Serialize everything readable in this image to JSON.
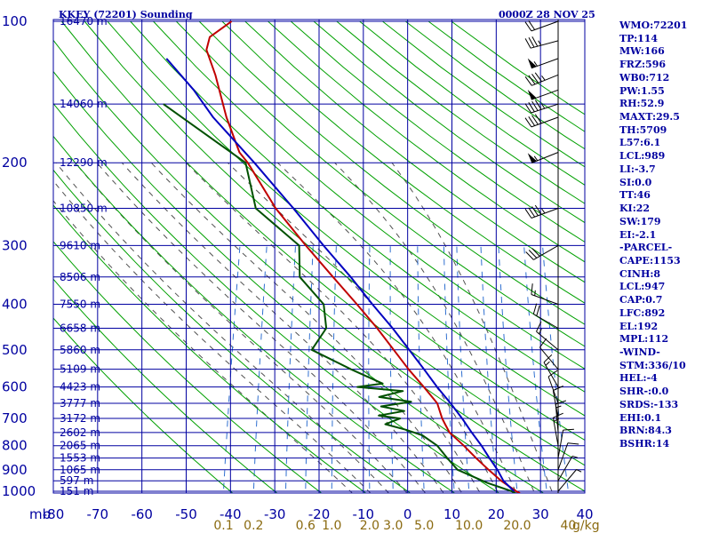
{
  "header": {
    "station_title": "KKEY (72201) Sounding",
    "time_title": "0000Z 28 NOV 25"
  },
  "colors": {
    "grid": "#0000a0",
    "dry_adiabat": "#00a000",
    "moist_adiabat": "#505050",
    "mixing_ratio": "#3070d0",
    "temperature": "#c00000",
    "dewpoint": "#005000",
    "parcel": "#0000c0",
    "barbs": "#000000"
  },
  "indices": [
    "WMO:72201",
    "TP:114",
    "MW:166",
    "FRZ:596",
    "WB0:712",
    "PW:1.55",
    "RH:52.9",
    "MAXT:29.5",
    "TH:5709",
    "L57:6.1",
    "LCL:989",
    "LI:-3.7",
    "SI:0.0",
    "TT:46",
    "KI:22",
    "SW:179",
    "EI:-2.1",
    "-PARCEL-",
    "CAPE:1153",
    "CINH:8",
    "LCL:947",
    "CAP:0.7",
    "LFC:892",
    "EL:192",
    "MPL:112",
    "-WIND-",
    "STM:336/10",
    "HEL:-4",
    "SHR-:0.0",
    "SRDS:-133",
    "EHI:0.1",
    "BRN:84.3",
    "BSHR:14"
  ],
  "chart_data": {
    "type": "line",
    "title": "KKEY (72201) Sounding",
    "subtitle": "0000Z 28 NOV 25",
    "x_axis": {
      "ticks": [
        -80,
        -70,
        -60,
        -50,
        -40,
        -30,
        -20,
        -10,
        0,
        10,
        20,
        30,
        40
      ],
      "unit_label": ""
    },
    "y_axis": {
      "ticks": [
        100,
        200,
        300,
        400,
        500,
        600,
        700,
        800,
        900,
        1000
      ],
      "unit_label": "mb",
      "scale": "log"
    },
    "xlim": [
      -80,
      40
    ],
    "ylim": [
      1000,
      100
    ],
    "grid": true,
    "skew": true,
    "height_labels": [
      {
        "p": 100,
        "label": "16470 m"
      },
      {
        "p": 150,
        "label": "14060 m"
      },
      {
        "p": 200,
        "label": "12290 m"
      },
      {
        "p": 250,
        "label": "10850 m"
      },
      {
        "p": 300,
        "label": "9610 m"
      },
      {
        "p": 350,
        "label": "8506 m"
      },
      {
        "p": 400,
        "label": "7550 m"
      },
      {
        "p": 450,
        "label": "6658 m"
      },
      {
        "p": 500,
        "label": "5860 m"
      },
      {
        "p": 550,
        "label": "5109 m"
      },
      {
        "p": 600,
        "label": "4423 m"
      },
      {
        "p": 650,
        "label": "3777 m"
      },
      {
        "p": 700,
        "label": "3172 m"
      },
      {
        "p": 750,
        "label": "2602 m"
      },
      {
        "p": 800,
        "label": "2065 m"
      },
      {
        "p": 850,
        "label": "1553 m"
      },
      {
        "p": 900,
        "label": "1065 m"
      },
      {
        "p": 950,
        "label": "597 m"
      },
      {
        "p": 1000,
        "label": "151 m"
      }
    ],
    "mixing_ratio_labels": [
      {
        "w": 0.1,
        "label": "0.1"
      },
      {
        "w": 0.2,
        "label": "0.2"
      },
      {
        "w": 0.6,
        "label": "0.6"
      },
      {
        "w": 1.0,
        "label": "1.0"
      },
      {
        "w": 2.0,
        "label": "2.0"
      },
      {
        "w": 3.0,
        "label": "3.0"
      },
      {
        "w": 5.0,
        "label": "5.0"
      },
      {
        "w": 10.0,
        "label": "10.0"
      },
      {
        "w": 20.0,
        "label": "20.0"
      },
      {
        "w": 40.0,
        "label": "40"
      }
    ],
    "mixing_ratio_unit": "g/kg",
    "series": [
      {
        "key": "temperature",
        "points": [
          {
            "p": 1010,
            "t": 25.5
          },
          {
            "p": 1000,
            "t": 24.5
          },
          {
            "p": 950,
            "t": 20.5
          },
          {
            "p": 900,
            "t": 17.0
          },
          {
            "p": 850,
            "t": 13.5
          },
          {
            "p": 800,
            "t": 10.0
          },
          {
            "p": 750,
            "t": 6.0
          },
          {
            "p": 720,
            "t": 4.5
          },
          {
            "p": 700,
            "t": 3.5
          },
          {
            "p": 650,
            "t": 1.5
          },
          {
            "p": 600,
            "t": -2.5
          },
          {
            "p": 550,
            "t": -7.0
          },
          {
            "p": 500,
            "t": -11.5
          },
          {
            "p": 450,
            "t": -16.5
          },
          {
            "p": 400,
            "t": -22.5
          },
          {
            "p": 350,
            "t": -29.5
          },
          {
            "p": 300,
            "t": -37.5
          },
          {
            "p": 250,
            "t": -46.5
          },
          {
            "p": 200,
            "t": -55.5
          },
          {
            "p": 190,
            "t": -58.0
          },
          {
            "p": 160,
            "t": -63.0
          },
          {
            "p": 130,
            "t": -68.0
          },
          {
            "p": 115,
            "t": -71.5
          },
          {
            "p": 108,
            "t": -71.5
          },
          {
            "p": 100,
            "t": -67.5
          }
        ]
      },
      {
        "key": "dewpoint",
        "points": [
          {
            "p": 1010,
            "t": 24.5
          },
          {
            "p": 1000,
            "t": 23.5
          },
          {
            "p": 960,
            "t": 17.5
          },
          {
            "p": 900,
            "t": 10.0
          },
          {
            "p": 850,
            "t": 7.0
          },
          {
            "p": 800,
            "t": 4.0
          },
          {
            "p": 760,
            "t": 0.0
          },
          {
            "p": 740,
            "t": -4.0
          },
          {
            "p": 720,
            "t": -9.0
          },
          {
            "p": 700,
            "t": -6.0
          },
          {
            "p": 690,
            "t": -11.0
          },
          {
            "p": 675,
            "t": -5.5
          },
          {
            "p": 660,
            "t": -11.0
          },
          {
            "p": 645,
            "t": -4.5
          },
          {
            "p": 630,
            "t": -12.0
          },
          {
            "p": 612,
            "t": -7.0
          },
          {
            "p": 600,
            "t": -17.5
          },
          {
            "p": 590,
            "t": -12.0
          },
          {
            "p": 550,
            "t": -20.0
          },
          {
            "p": 500,
            "t": -30.0
          },
          {
            "p": 450,
            "t": -28.0
          },
          {
            "p": 400,
            "t": -30.0
          },
          {
            "p": 350,
            "t": -37.0
          },
          {
            "p": 300,
            "t": -39.0
          },
          {
            "p": 250,
            "t": -51.0
          },
          {
            "p": 200,
            "t": -56.0
          },
          {
            "p": 150,
            "t": -78.0
          }
        ]
      },
      {
        "key": "parcel",
        "points": [
          {
            "p": 1000,
            "t": 24.0
          },
          {
            "p": 950,
            "t": 21.0
          },
          {
            "p": 900,
            "t": 19.0
          },
          {
            "p": 850,
            "t": 16.5
          },
          {
            "p": 800,
            "t": 14.0
          },
          {
            "p": 750,
            "t": 11.0
          },
          {
            "p": 700,
            "t": 8.0
          },
          {
            "p": 650,
            "t": 4.5
          },
          {
            "p": 600,
            "t": 0.5
          },
          {
            "p": 550,
            "t": -3.5
          },
          {
            "p": 500,
            "t": -8.0
          },
          {
            "p": 450,
            "t": -13.0
          },
          {
            "p": 400,
            "t": -19.0
          },
          {
            "p": 350,
            "t": -25.5
          },
          {
            "p": 300,
            "t": -33.5
          },
          {
            "p": 250,
            "t": -42.5
          },
          {
            "p": 200,
            "t": -54.0
          },
          {
            "p": 160,
            "t": -66.0
          },
          {
            "p": 140,
            "t": -72.0
          },
          {
            "p": 120,
            "t": -80.0
          }
        ]
      }
    ],
    "wind_barbs": [
      {
        "p": 100,
        "dir": 250,
        "spd": 20
      },
      {
        "p": 110,
        "dir": 255,
        "spd": 35
      },
      {
        "p": 120,
        "dir": 250,
        "spd": 55
      },
      {
        "p": 130,
        "dir": 248,
        "spd": 45
      },
      {
        "p": 140,
        "dir": 250,
        "spd": 50
      },
      {
        "p": 150,
        "dir": 252,
        "spd": 45
      },
      {
        "p": 160,
        "dir": 250,
        "spd": 40
      },
      {
        "p": 190,
        "dir": 248,
        "spd": 55
      },
      {
        "p": 250,
        "dir": 250,
        "spd": 45
      },
      {
        "p": 300,
        "dir": 240,
        "spd": 30
      },
      {
        "p": 400,
        "dir": 290,
        "spd": 15
      },
      {
        "p": 450,
        "dir": 300,
        "spd": 20
      },
      {
        "p": 500,
        "dir": 310,
        "spd": 15
      },
      {
        "p": 550,
        "dir": 320,
        "spd": 10
      },
      {
        "p": 600,
        "dir": 330,
        "spd": 15
      },
      {
        "p": 650,
        "dir": 340,
        "spd": 10
      },
      {
        "p": 700,
        "dir": 350,
        "spd": 10
      },
      {
        "p": 750,
        "dir": 355,
        "spd": 15
      },
      {
        "p": 800,
        "dir": 350,
        "spd": 15
      },
      {
        "p": 850,
        "dir": 10,
        "spd": 10
      },
      {
        "p": 900,
        "dir": 20,
        "spd": 10
      },
      {
        "p": 950,
        "dir": 30,
        "spd": 5
      },
      {
        "p": 1000,
        "dir": 40,
        "spd": 5
      }
    ]
  }
}
